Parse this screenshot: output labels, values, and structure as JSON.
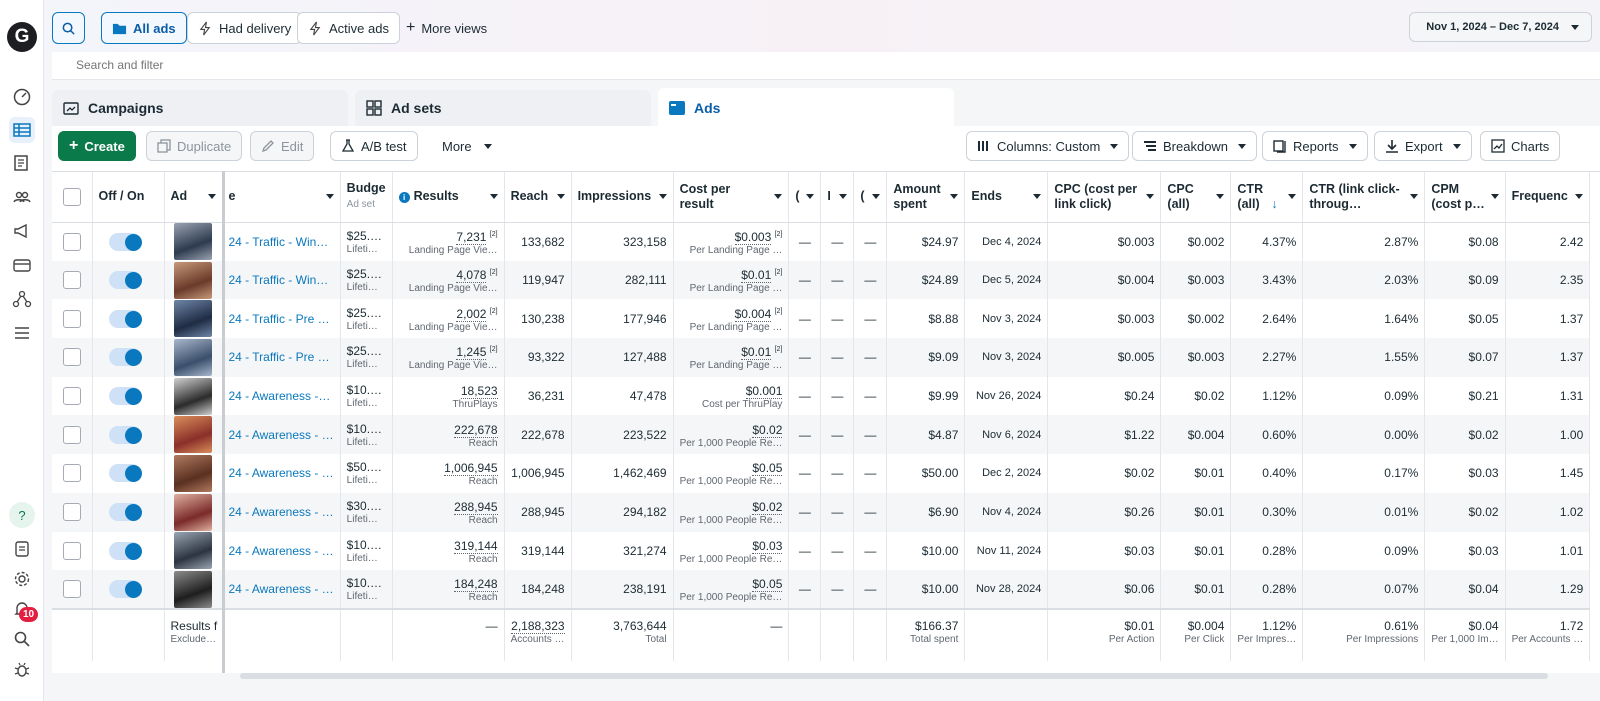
{
  "rail": {
    "logo": "G",
    "badge_count": "10",
    "icons": [
      "dashboard-icon",
      "table-icon",
      "pages-icon",
      "audience-icon",
      "megaphone-icon",
      "billing-icon",
      "network-icon",
      "menu-icon",
      "help-icon",
      "report-icon",
      "settings-icon",
      "notifications-icon",
      "search-icon",
      "bug-icon"
    ]
  },
  "topbar": {
    "views": [
      "All ads",
      "Had delivery",
      "Active ads",
      "More views"
    ],
    "date_range": "Nov 1, 2024 – Dec 7, 2024"
  },
  "search": {
    "placeholder": "Search and filter"
  },
  "tabs": [
    "Campaigns",
    "Ad sets",
    "Ads"
  ],
  "toolbar": {
    "create": "Create",
    "duplicate": "Duplicate",
    "edit": "Edit",
    "ab_test": "A/B test",
    "more": "More",
    "columns": "Columns: Custom",
    "breakdown": "Breakdown",
    "reports": "Reports",
    "export": "Export",
    "charts": "Charts"
  },
  "table": {
    "headers": {
      "offon": "Off / On",
      "ad": "Ad",
      "name": "e",
      "budget": "Budge",
      "budget_sub": "Ad set",
      "results": "Results",
      "reach": "Reach",
      "impressions": "Impressions",
      "cost_per_result": "Cost per result",
      "c1": "(",
      "c2": "I",
      "c3": "(",
      "amount_spent": "Amount spent",
      "ends": "Ends",
      "cpc_link": "CPC (cost per link click)",
      "cpc_all": "CPC (all)",
      "ctr_all": "CTR (all)",
      "ctr_link": "CTR (link click-throug…",
      "cpm": "CPM (cost p…",
      "frequency": "Frequenc"
    },
    "thumb_colors": [
      [
        "#2d3a4f",
        "#9aa3b0"
      ],
      [
        "#6b3a2a",
        "#c79a7a"
      ],
      [
        "#1f2c44",
        "#6f86a8"
      ],
      [
        "#3a4f6b",
        "#a8b7cc"
      ],
      [
        "#2b2b2b",
        "#d0d0d0"
      ],
      [
        "#8a2f2a",
        "#d98f5a"
      ],
      [
        "#5a3020",
        "#b07a60"
      ],
      [
        "#7a2a2a",
        "#e0b0a0"
      ],
      [
        "#2c3440",
        "#9aa6b4"
      ],
      [
        "#1e1e1e",
        "#8c8c8c"
      ]
    ],
    "rows": [
      {
        "name": "24 - Traffic - Win…",
        "budget": "$25.…",
        "budget_sub": "Lifeti…",
        "results": "7,231",
        "results_sup": "[2]",
        "results_sub": "Landing Page Vie…",
        "reach": "133,682",
        "impressions": "323,158",
        "cpr": "$0.003",
        "cpr_sup": "[2]",
        "cpr_sub": "Per Landing Page …",
        "c1": "—",
        "c2": "—",
        "c3": "—",
        "spent": "$24.97",
        "ends": "Dec 4, 2024",
        "cpc_link": "$0.003",
        "cpc_all": "$0.002",
        "ctr_all": "4.37%",
        "ctr_link": "2.87%",
        "cpm": "$0.08",
        "freq": "2.42"
      },
      {
        "name": "24 - Traffic - Win…",
        "budget": "$25.…",
        "budget_sub": "Lifeti…",
        "results": "4,078",
        "results_sup": "[2]",
        "results_sub": "Landing Page Vie…",
        "reach": "119,947",
        "impressions": "282,111",
        "cpr": "$0.01",
        "cpr_sup": "[2]",
        "cpr_sub": "Per Landing Page …",
        "c1": "—",
        "c2": "—",
        "c3": "—",
        "spent": "$24.89",
        "ends": "Dec 5, 2024",
        "cpc_link": "$0.004",
        "cpc_all": "$0.003",
        "ctr_all": "3.43%",
        "ctr_link": "2.03%",
        "cpm": "$0.09",
        "freq": "2.35"
      },
      {
        "name": "24 - Traffic - Pre …",
        "budget": "$25.…",
        "budget_sub": "Lifeti…",
        "results": "2,002",
        "results_sup": "[2]",
        "results_sub": "Landing Page Vie…",
        "reach": "130,238",
        "impressions": "177,946",
        "cpr": "$0.004",
        "cpr_sup": "[2]",
        "cpr_sub": "Per Landing Page …",
        "c1": "—",
        "c2": "—",
        "c3": "—",
        "spent": "$8.88",
        "ends": "Nov 3, 2024",
        "cpc_link": "$0.003",
        "cpc_all": "$0.002",
        "ctr_all": "2.64%",
        "ctr_link": "1.64%",
        "cpm": "$0.05",
        "freq": "1.37"
      },
      {
        "name": "24 - Traffic - Pre …",
        "budget": "$25.…",
        "budget_sub": "Lifeti…",
        "results": "1,245",
        "results_sup": "[2]",
        "results_sub": "Landing Page Vie…",
        "reach": "93,322",
        "impressions": "127,488",
        "cpr": "$0.01",
        "cpr_sup": "[2]",
        "cpr_sub": "Per Landing Page …",
        "c1": "—",
        "c2": "—",
        "c3": "—",
        "spent": "$9.09",
        "ends": "Nov 3, 2024",
        "cpc_link": "$0.005",
        "cpc_all": "$0.003",
        "ctr_all": "2.27%",
        "ctr_link": "1.55%",
        "cpm": "$0.07",
        "freq": "1.37"
      },
      {
        "name": "24 - Awareness -…",
        "budget": "$10.…",
        "budget_sub": "Lifeti…",
        "results": "18,523",
        "results_sup": "",
        "results_sub": "ThruPlays",
        "reach": "36,231",
        "impressions": "47,478",
        "cpr": "$0.001",
        "cpr_sup": "",
        "cpr_sub": "Cost per ThruPlay",
        "c1": "—",
        "c2": "—",
        "c3": "—",
        "spent": "$9.99",
        "ends": "Nov 26, 2024",
        "cpc_link": "$0.24",
        "cpc_all": "$0.02",
        "ctr_all": "1.12%",
        "ctr_link": "0.09%",
        "cpm": "$0.21",
        "freq": "1.31"
      },
      {
        "name": "24 - Awareness - …",
        "budget": "$10.…",
        "budget_sub": "Lifeti…",
        "results": "222,678",
        "results_sup": "",
        "results_sub": "Reach",
        "reach": "222,678",
        "impressions": "223,522",
        "cpr": "$0.02",
        "cpr_sup": "",
        "cpr_sub": "Per 1,000 People Re…",
        "c1": "—",
        "c2": "—",
        "c3": "—",
        "spent": "$4.87",
        "ends": "Nov 6, 2024",
        "cpc_link": "$1.22",
        "cpc_all": "$0.004",
        "ctr_all": "0.60%",
        "ctr_link": "0.00%",
        "cpm": "$0.02",
        "freq": "1.00"
      },
      {
        "name": "24 - Awareness - …",
        "budget": "$50.…",
        "budget_sub": "Lifeti…",
        "results": "1,006,945",
        "results_sup": "",
        "results_sub": "Reach",
        "reach": "1,006,945",
        "impressions": "1,462,469",
        "cpr": "$0.05",
        "cpr_sup": "",
        "cpr_sub": "Per 1,000 People Re…",
        "c1": "—",
        "c2": "—",
        "c3": "—",
        "spent": "$50.00",
        "ends": "Dec 2, 2024",
        "cpc_link": "$0.02",
        "cpc_all": "$0.01",
        "ctr_all": "0.40%",
        "ctr_link": "0.17%",
        "cpm": "$0.03",
        "freq": "1.45"
      },
      {
        "name": "24 - Awareness - …",
        "budget": "$30.…",
        "budget_sub": "Lifeti…",
        "results": "288,945",
        "results_sup": "",
        "results_sub": "Reach",
        "reach": "288,945",
        "impressions": "294,182",
        "cpr": "$0.02",
        "cpr_sup": "",
        "cpr_sub": "Per 1,000 People Re…",
        "c1": "—",
        "c2": "—",
        "c3": "—",
        "spent": "$6.90",
        "ends": "Nov 4, 2024",
        "cpc_link": "$0.26",
        "cpc_all": "$0.01",
        "ctr_all": "0.30%",
        "ctr_link": "0.01%",
        "cpm": "$0.02",
        "freq": "1.02"
      },
      {
        "name": "24 - Awareness - …",
        "budget": "$10.…",
        "budget_sub": "Lifeti…",
        "results": "319,144",
        "results_sup": "",
        "results_sub": "Reach",
        "reach": "319,144",
        "impressions": "321,274",
        "cpr": "$0.03",
        "cpr_sup": "",
        "cpr_sub": "Per 1,000 People Re…",
        "c1": "—",
        "c2": "—",
        "c3": "—",
        "spent": "$10.00",
        "ends": "Nov 11, 2024",
        "cpc_link": "$0.03",
        "cpc_all": "$0.01",
        "ctr_all": "0.28%",
        "ctr_link": "0.09%",
        "cpm": "$0.03",
        "freq": "1.01"
      },
      {
        "name": "24 - Awareness - …",
        "budget": "$10.…",
        "budget_sub": "Lifeti…",
        "results": "184,248",
        "results_sup": "",
        "results_sub": "Reach",
        "reach": "184,248",
        "impressions": "238,191",
        "cpr": "$0.05",
        "cpr_sup": "",
        "cpr_sub": "Per 1,000 People Re…",
        "c1": "—",
        "c2": "—",
        "c3": "—",
        "spent": "$10.00",
        "ends": "Nov 28, 2024",
        "cpc_link": "$0.06",
        "cpc_all": "$0.01",
        "ctr_all": "0.28%",
        "ctr_link": "0.07%",
        "cpm": "$0.04",
        "freq": "1.29"
      }
    ],
    "totals": {
      "label": "Results f",
      "label_sub": "Exclude…",
      "results": "—",
      "reach": "2,188,323",
      "reach_sub": "Accounts …",
      "impressions": "3,763,644",
      "impressions_sub": "Total",
      "cpr": "—",
      "spent": "$166.37",
      "spent_sub": "Total spent",
      "cpc_link": "$0.01",
      "cpc_link_sub": "Per Action",
      "cpc_all": "$0.004",
      "cpc_all_sub": "Per Click",
      "ctr_all": "1.12%",
      "ctr_all_sub": "Per Impres…",
      "ctr_link": "0.61%",
      "ctr_link_sub": "Per Impressions",
      "cpm": "$0.04",
      "cpm_sub": "Per 1,000 Im…",
      "freq": "1.72",
      "freq_sub": "Per Accounts …"
    }
  }
}
